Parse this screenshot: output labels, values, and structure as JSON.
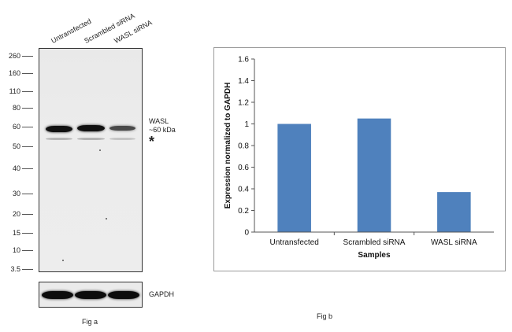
{
  "fig_a": {
    "caption": "Fig a",
    "lanes": [
      "Untransfected",
      "Scrambled siRNA",
      "WASL  siRNA"
    ],
    "mw_markers": [
      "260",
      "160",
      "110",
      "80",
      "60",
      "50",
      "40",
      "30",
      "20",
      "15",
      "10",
      "3.5"
    ],
    "target_label": "WASL",
    "target_size": "~60 kDa",
    "nonspecific_mark": "*",
    "loading_control": "GAPDH"
  },
  "chart_data": {
    "type": "bar",
    "caption": "Fig b",
    "categories": [
      "Untransfected",
      "Scrambled siRNA",
      "WASL siRNA"
    ],
    "values": [
      1.0,
      1.05,
      0.37
    ],
    "xlabel": "Samples",
    "ylabel": "Expression normalized to GAPDH",
    "ylim": [
      0,
      1.6
    ],
    "yticks": [
      "0",
      "0.2",
      "0.4",
      "0.6",
      "0.8",
      "1",
      "1.2",
      "1.4",
      "1.6"
    ],
    "bar_color": "#4f81bd",
    "grid": false,
    "legend": "none"
  }
}
